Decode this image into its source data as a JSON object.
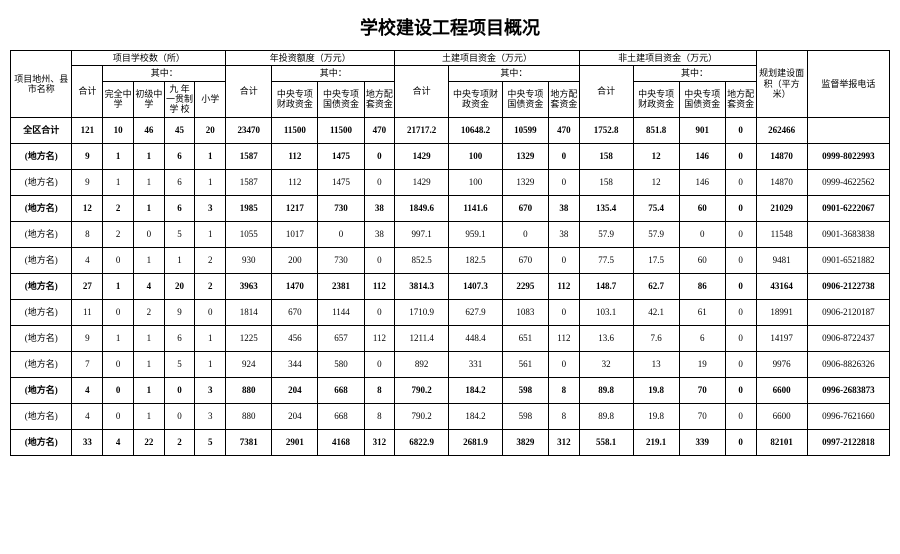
{
  "title": "学校建设工程项目概况",
  "headers": {
    "row_label": "项目地州、县市名称",
    "group1": "项目学校数（所）",
    "group2": "年投资额度（万元）",
    "group3": "土建项目资金（万元）",
    "group4": "非土建项目资金（万元）",
    "area": "规划建设面积（平方米）",
    "tel": "监督举报电话",
    "heji": "合计",
    "qizhong": "其中：",
    "g1_c1": "完全中学",
    "g1_c2": "初级中学",
    "g1_c3": "九 年一贯制学 校",
    "g1_c4": "小学",
    "g_c1": "中央专项财政资金",
    "g_c2": "中央专项国债资金",
    "g_c3": "地方配套资金"
  },
  "rows": [
    {
      "bold": true,
      "cells": [
        "全区合计",
        "121",
        "10",
        "46",
        "45",
        "20",
        "23470",
        "11500",
        "11500",
        "470",
        "21717.2",
        "10648.2",
        "10599",
        "470",
        "1752.8",
        "851.8",
        "901",
        "0",
        "262466",
        ""
      ]
    },
    {
      "bold": true,
      "cells": [
        "(地方名)",
        "9",
        "1",
        "1",
        "6",
        "1",
        "1587",
        "112",
        "1475",
        "0",
        "1429",
        "100",
        "1329",
        "0",
        "158",
        "12",
        "146",
        "0",
        "14870",
        "0999-8022993"
      ]
    },
    {
      "bold": false,
      "cells": [
        "(地方名)",
        "9",
        "1",
        "1",
        "6",
        "1",
        "1587",
        "112",
        "1475",
        "0",
        "1429",
        "100",
        "1329",
        "0",
        "158",
        "12",
        "146",
        "0",
        "14870",
        "0999-4622562"
      ]
    },
    {
      "bold": true,
      "cells": [
        "(地方名)",
        "12",
        "2",
        "1",
        "6",
        "3",
        "1985",
        "1217",
        "730",
        "38",
        "1849.6",
        "1141.6",
        "670",
        "38",
        "135.4",
        "75.4",
        "60",
        "0",
        "21029",
        "0901-6222067"
      ]
    },
    {
      "bold": false,
      "cells": [
        "(地方名)",
        "8",
        "2",
        "0",
        "5",
        "1",
        "1055",
        "1017",
        "0",
        "38",
        "997.1",
        "959.1",
        "0",
        "38",
        "57.9",
        "57.9",
        "0",
        "0",
        "11548",
        "0901-3683838"
      ]
    },
    {
      "bold": false,
      "cells": [
        "(地方名)",
        "4",
        "0",
        "1",
        "1",
        "2",
        "930",
        "200",
        "730",
        "0",
        "852.5",
        "182.5",
        "670",
        "0",
        "77.5",
        "17.5",
        "60",
        "0",
        "9481",
        "0901-6521882"
      ]
    },
    {
      "bold": true,
      "cells": [
        "(地方名)",
        "27",
        "1",
        "4",
        "20",
        "2",
        "3963",
        "1470",
        "2381",
        "112",
        "3814.3",
        "1407.3",
        "2295",
        "112",
        "148.7",
        "62.7",
        "86",
        "0",
        "43164",
        "0906-2122738"
      ]
    },
    {
      "bold": false,
      "cells": [
        "(地方名)",
        "11",
        "0",
        "2",
        "9",
        "0",
        "1814",
        "670",
        "1144",
        "0",
        "1710.9",
        "627.9",
        "1083",
        "0",
        "103.1",
        "42.1",
        "61",
        "0",
        "18991",
        "0906-2120187"
      ]
    },
    {
      "bold": false,
      "cells": [
        "(地方名)",
        "9",
        "1",
        "1",
        "6",
        "1",
        "1225",
        "456",
        "657",
        "112",
        "1211.4",
        "448.4",
        "651",
        "112",
        "13.6",
        "7.6",
        "6",
        "0",
        "14197",
        "0906-8722437"
      ]
    },
    {
      "bold": false,
      "cells": [
        "(地方名)",
        "7",
        "0",
        "1",
        "5",
        "1",
        "924",
        "344",
        "580",
        "0",
        "892",
        "331",
        "561",
        "0",
        "32",
        "13",
        "19",
        "0",
        "9976",
        "0906-8826326"
      ]
    },
    {
      "bold": true,
      "cells": [
        "(地方名)",
        "4",
        "0",
        "1",
        "0",
        "3",
        "880",
        "204",
        "668",
        "8",
        "790.2",
        "184.2",
        "598",
        "8",
        "89.8",
        "19.8",
        "70",
        "0",
        "6600",
        "0996-2683873"
      ]
    },
    {
      "bold": false,
      "cells": [
        "(地方名)",
        "4",
        "0",
        "1",
        "0",
        "3",
        "880",
        "204",
        "668",
        "8",
        "790.2",
        "184.2",
        "598",
        "8",
        "89.8",
        "19.8",
        "70",
        "0",
        "6600",
        "0996-7621660"
      ]
    },
    {
      "bold": true,
      "cells": [
        "(地方名)",
        "33",
        "4",
        "22",
        "2",
        "5",
        "7381",
        "2901",
        "4168",
        "312",
        "6822.9",
        "2681.9",
        "3829",
        "312",
        "558.1",
        "219.1",
        "339",
        "0",
        "82101",
        "0997-2122818"
      ]
    }
  ]
}
